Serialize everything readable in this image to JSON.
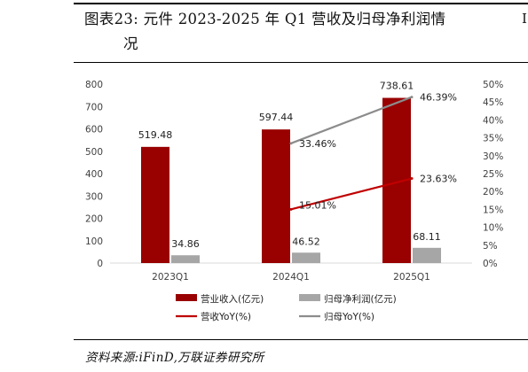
{
  "caption": {
    "line1": "图表23:  元件 2023-2025 年 Q1 营收及归母净利润情",
    "line2": "况",
    "side_mark": "I"
  },
  "source": "资料来源:iFinD,万联证券研究所",
  "colors": {
    "revenue": "#990000",
    "profit": "#a6a6a6",
    "revenue_yoy": "#c00000",
    "profit_yoy": "#8c8c8c"
  },
  "chart_data": {
    "type": "bar",
    "categories": [
      "2023Q1",
      "2024Q1",
      "2025Q1"
    ],
    "series": [
      {
        "name": "营业收入(亿元)",
        "axis": "left",
        "type": "bar",
        "values": [
          519.48,
          597.44,
          738.61
        ],
        "labels": [
          "519.48",
          "597.44",
          "738.61"
        ]
      },
      {
        "name": "归母净利润(亿元)",
        "axis": "left",
        "type": "bar",
        "values": [
          34.86,
          46.52,
          68.11
        ],
        "labels": [
          "34.86",
          "46.52",
          "68.11"
        ]
      },
      {
        "name": "营收YoY(%)",
        "axis": "right",
        "type": "line",
        "x": [
          "2024Q1",
          "2025Q1"
        ],
        "values": [
          15.01,
          23.63
        ],
        "labels": [
          "15.01%",
          "23.63%"
        ]
      },
      {
        "name": "归母YoY(%)",
        "axis": "right",
        "type": "line",
        "x": [
          "2024Q1",
          "2025Q1"
        ],
        "values": [
          33.46,
          46.39
        ],
        "labels": [
          "33.46%",
          "46.39%"
        ]
      }
    ],
    "ylim_left": [
      0,
      800
    ],
    "yticks_left": [
      "0",
      "100",
      "200",
      "300",
      "400",
      "500",
      "600",
      "700",
      "800"
    ],
    "ylim_right": [
      0,
      50
    ],
    "yticks_right": [
      "0%",
      "5%",
      "10%",
      "15%",
      "20%",
      "25%",
      "30%",
      "35%",
      "40%",
      "45%",
      "50%"
    ],
    "grid": false,
    "legend_position": "bottom"
  }
}
